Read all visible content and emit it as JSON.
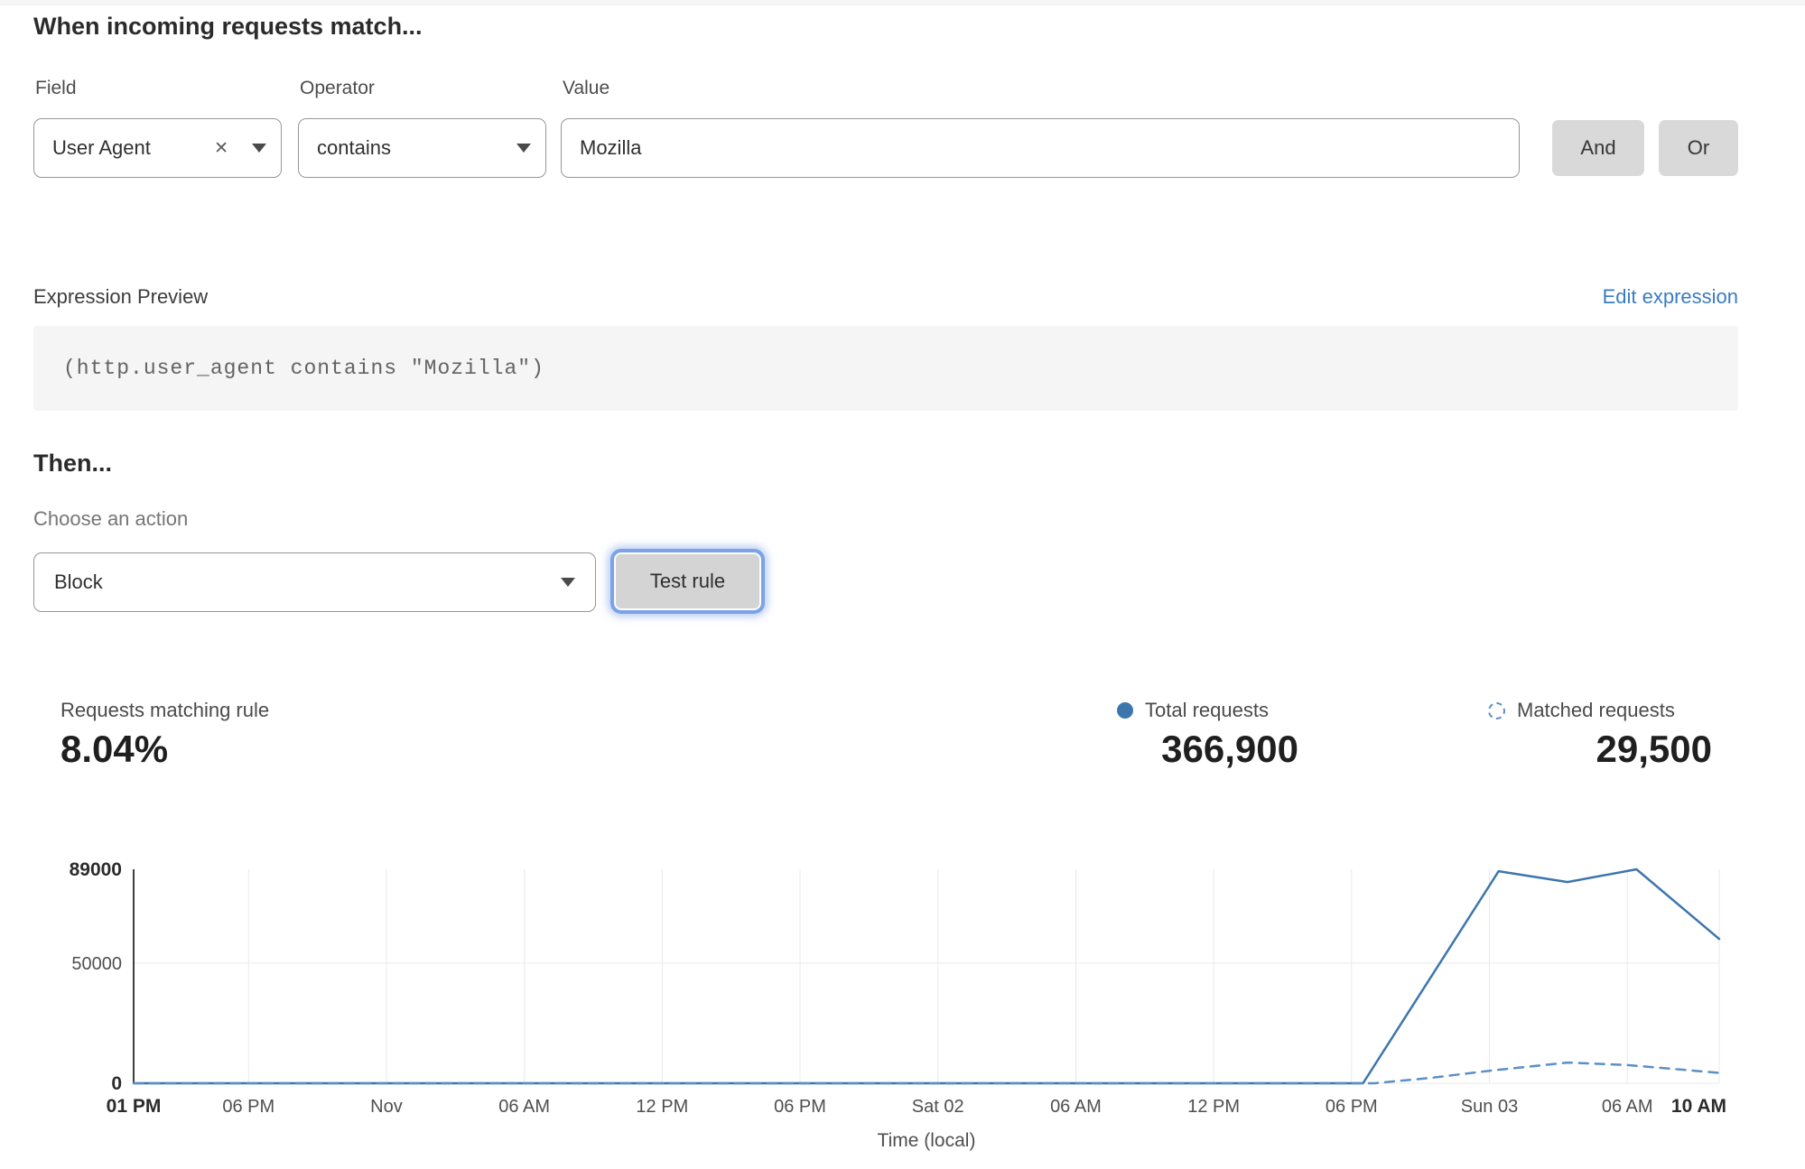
{
  "when": {
    "title": "When incoming requests match..."
  },
  "condition": {
    "field_label": "Field",
    "operator_label": "Operator",
    "value_label": "Value",
    "field_value": "User Agent",
    "clear_icon": "✕",
    "operator_value": "contains",
    "value_value": "Mozilla",
    "and_label": "And",
    "or_label": "Or"
  },
  "expression": {
    "label": "Expression Preview",
    "edit_link": "Edit expression",
    "code": "(http.user_agent contains \"Mozilla\")"
  },
  "then": {
    "title": "Then...",
    "action_label": "Choose an action",
    "action_value": "Block",
    "test_button": "Test rule"
  },
  "stats": {
    "matching_label": "Requests matching rule",
    "matching_value": "8.04%",
    "total_label": "Total requests",
    "total_value": "366,900",
    "matched_label": "Matched requests",
    "matched_value": "29,500"
  },
  "colors": {
    "total_line": "#3d76ad",
    "matched_line": "#5b8fc7",
    "link_blue": "#3b7cc0",
    "focus_ring": "#7ca2e8",
    "gridline": "#e9e9e9",
    "axis": "#3f3f3f"
  },
  "chart_data": {
    "type": "line",
    "title": "",
    "xlabel": "Time (local)",
    "ylabel": "",
    "ylim": [
      0,
      89000
    ],
    "x_range_hours": [
      0,
      69
    ],
    "grid": true,
    "legend_position": "top-right",
    "y_ticks": [
      {
        "label": "0",
        "value": 0,
        "emph": true
      },
      {
        "label": "50000",
        "value": 50000,
        "emph": false
      },
      {
        "label": "89000",
        "value": 89000,
        "emph": true
      }
    ],
    "x_ticks": [
      {
        "label": "01 PM",
        "hour": 0,
        "emph": true
      },
      {
        "label": "06 PM",
        "hour": 5,
        "emph": false
      },
      {
        "label": "Nov",
        "hour": 11,
        "emph": false
      },
      {
        "label": "06 AM",
        "hour": 17,
        "emph": false
      },
      {
        "label": "12 PM",
        "hour": 23,
        "emph": false
      },
      {
        "label": "06 PM",
        "hour": 29,
        "emph": false
      },
      {
        "label": "Sat 02",
        "hour": 35,
        "emph": false
      },
      {
        "label": "06 AM",
        "hour": 41,
        "emph": false
      },
      {
        "label": "12 PM",
        "hour": 47,
        "emph": false
      },
      {
        "label": "06 PM",
        "hour": 53,
        "emph": false
      },
      {
        "label": "Sun 03",
        "hour": 59,
        "emph": false
      },
      {
        "label": "06 AM",
        "hour": 65,
        "emph": false
      },
      {
        "label": "10 AM",
        "hour": 69,
        "emph": true
      }
    ],
    "series": [
      {
        "name": "Total requests",
        "style": "solid",
        "color": "#3d76ad",
        "points": [
          [
            0,
            0
          ],
          [
            53.5,
            0
          ],
          [
            59.4,
            88200
          ],
          [
            62.4,
            83700
          ],
          [
            65.4,
            89000
          ],
          [
            69,
            60000
          ]
        ]
      },
      {
        "name": "Matched requests",
        "style": "dashed",
        "color": "#5b8fc7",
        "points": [
          [
            0,
            0
          ],
          [
            54,
            0
          ],
          [
            56.5,
            2300
          ],
          [
            59,
            5200
          ],
          [
            62.4,
            8600
          ],
          [
            65,
            7600
          ],
          [
            69,
            4300
          ]
        ]
      }
    ]
  }
}
